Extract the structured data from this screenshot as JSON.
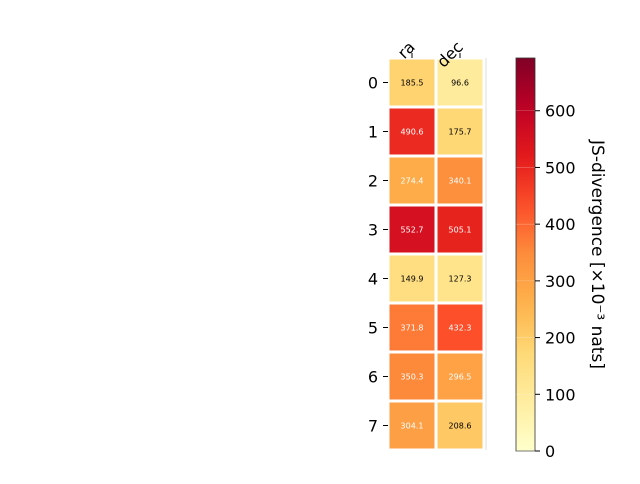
{
  "chart_data": {
    "type": "heatmap",
    "title": "",
    "columns": [
      "ra",
      "dec"
    ],
    "rows": [
      "0",
      "1",
      "2",
      "3",
      "4",
      "5",
      "6",
      "7"
    ],
    "values": [
      [
        185.5,
        96.6
      ],
      [
        490.6,
        175.7
      ],
      [
        274.4,
        340.1
      ],
      [
        552.7,
        505.1
      ],
      [
        149.9,
        127.3
      ],
      [
        371.8,
        432.3
      ],
      [
        350.3,
        296.5
      ],
      [
        304.1,
        208.6
      ]
    ],
    "cell_labels": [
      [
        "185.5",
        "96.6"
      ],
      [
        "490.6",
        "175.7"
      ],
      [
        "274.4",
        "340.1"
      ],
      [
        "552.7",
        "505.1"
      ],
      [
        "149.9",
        "127.3"
      ],
      [
        "371.8",
        "432.3"
      ],
      [
        "350.3",
        "296.5"
      ],
      [
        "304.1",
        "208.6"
      ]
    ],
    "colorbar": {
      "label": "JS-divergence [×10⁻³ nats]",
      "range": [
        0,
        693
      ],
      "ticks": [
        0,
        100,
        200,
        300,
        400,
        500,
        600
      ],
      "tick_labels": [
        "0",
        "100",
        "200",
        "300",
        "400",
        "500",
        "600"
      ],
      "colormap": "YlOrRd"
    },
    "grid": false,
    "legend": "colorbar-right"
  }
}
